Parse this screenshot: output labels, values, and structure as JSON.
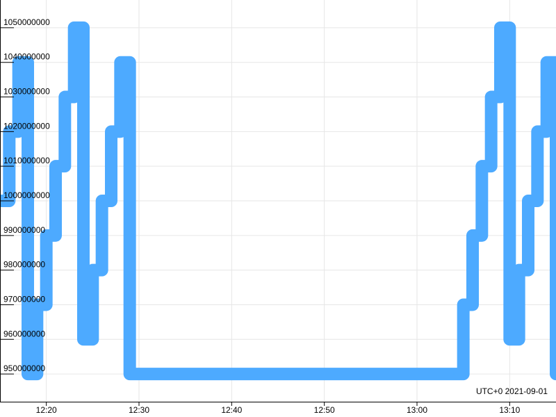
{
  "chart_data": {
    "type": "line",
    "line_shape": "step",
    "x": [
      "2021-09-01 12:15",
      "2021-09-01 12:16",
      "2021-09-01 12:17",
      "2021-09-01 12:18",
      "2021-09-01 12:19",
      "2021-09-01 12:20",
      "2021-09-01 12:21",
      "2021-09-01 12:22",
      "2021-09-01 12:23",
      "2021-09-01 12:24",
      "2021-09-01 12:25",
      "2021-09-01 12:26",
      "2021-09-01 12:27",
      "2021-09-01 12:28",
      "2021-09-01 12:29",
      "2021-09-01 13:04",
      "2021-09-01 13:05",
      "2021-09-01 13:06",
      "2021-09-01 13:07",
      "2021-09-01 13:08",
      "2021-09-01 13:09",
      "2021-09-01 13:10",
      "2021-09-01 13:11",
      "2021-09-01 13:12",
      "2021-09-01 13:13",
      "2021-09-01 13:14",
      "2021-09-01 13:15"
    ],
    "series": [
      {
        "values": [
          1000000000,
          1020000000,
          1040000000,
          950000000,
          970000000,
          990000000,
          1010000000,
          1030000000,
          1050000000,
          960000000,
          980000000,
          1000000000,
          1020000000,
          1040000000,
          950000000,
          950000000,
          970000000,
          990000000,
          1010000000,
          1030000000,
          1050000000,
          960000000,
          980000000,
          1000000000,
          1020000000,
          1040000000,
          950000000
        ],
        "color": "#4daaff"
      }
    ],
    "x_ticks": [
      "12:20",
      "12:30",
      "12:40",
      "12:50",
      "13:00",
      "13:10"
    ],
    "y_ticks": [
      "950000000",
      "960000000",
      "970000000",
      "980000000",
      "990000000",
      "1000000000",
      "1010000000",
      "1020000000",
      "1030000000",
      "1040000000",
      "1050000000"
    ],
    "xlim": [
      "2021-09-01 12:15",
      "2021-09-01 13:15"
    ],
    "ylim": [
      942000000,
      1058000000
    ],
    "grid": true,
    "timezone_label": "UTC+0 2021-09-01",
    "title": "",
    "xlabel": "",
    "ylabel": ""
  }
}
